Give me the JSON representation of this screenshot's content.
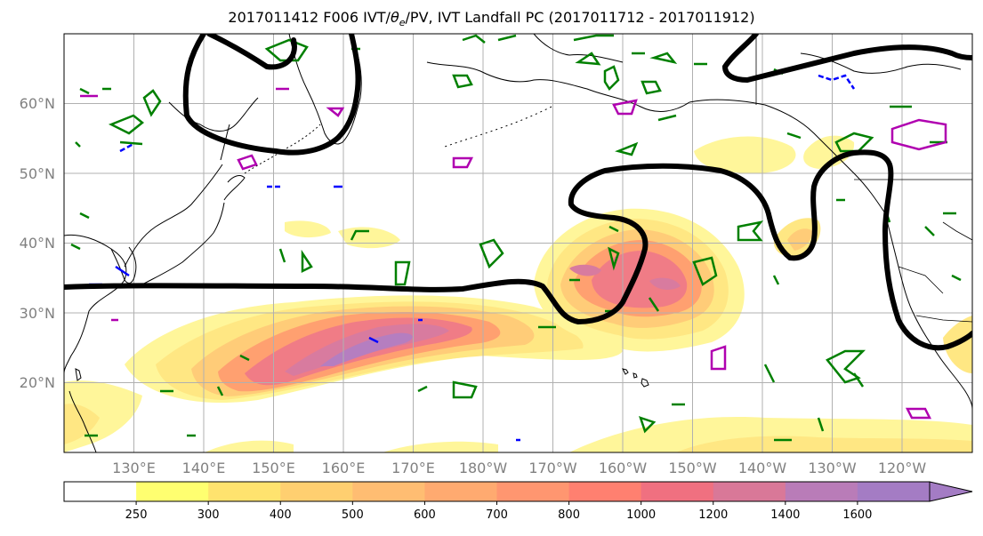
{
  "title": {
    "prefix": "2017011412 F006 IVT/",
    "theta": "θ",
    "theta_sub": "e",
    "suffix": "/PV, IVT Landfall PC (2017011712 - 2017011912)"
  },
  "map": {
    "lat_labels": [
      "60°N",
      "50°N",
      "40°N",
      "30°N",
      "20°N"
    ],
    "lon_labels": [
      "130°E",
      "140°E",
      "150°E",
      "160°E",
      "170°E",
      "180°W",
      "170°W",
      "160°W",
      "150°W",
      "140°W",
      "130°W",
      "120°W"
    ],
    "lat_range": [
      10,
      70
    ],
    "lon_range_east": [
      120,
      250
    ],
    "gridlines": true,
    "contour_colors": {
      "pv_contour": "#000000",
      "theta_e_contour": "#008000",
      "positive_contour": "#b000b0",
      "negative_contour": "#0000ff"
    }
  },
  "colorbar": {
    "ticks": [
      "250",
      "300",
      "400",
      "500",
      "600",
      "700",
      "800",
      "1000",
      "1200",
      "1400",
      "1600"
    ],
    "colors": [
      "#ffffff",
      "#ffff70",
      "#ffe36e",
      "#ffcf70",
      "#ffbd72",
      "#ffaa70",
      "#ff9670",
      "#ff8070",
      "#f07080",
      "#d97898",
      "#b97cb8",
      "#a47cc4"
    ]
  }
}
